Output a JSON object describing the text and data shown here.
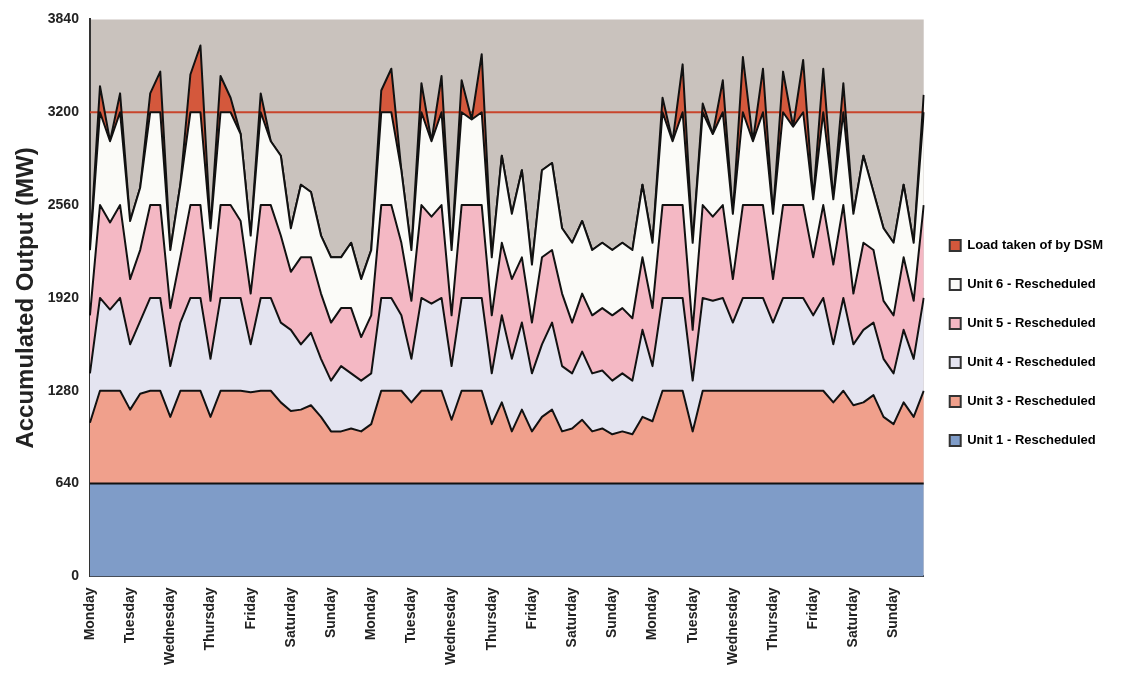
{
  "chart_data": {
    "type": "area",
    "stacked": true,
    "ylabel": "Accumulated Output (MW)",
    "ylim": [
      0,
      3840
    ],
    "yticks": [
      0,
      640,
      1280,
      1920,
      2560,
      3200,
      3840
    ],
    "grid": false,
    "legend": "right",
    "marker": "none",
    "categories": [
      "Monday",
      null,
      null,
      null,
      "Tuesday",
      null,
      null,
      null,
      "Wednesday",
      null,
      null,
      null,
      "Thursday",
      null,
      null,
      null,
      "Friday",
      null,
      null,
      null,
      "Saturday",
      null,
      null,
      null,
      "Sunday",
      null,
      null,
      null,
      "Monday",
      null,
      null,
      null,
      "Tuesday",
      null,
      null,
      null,
      "Wednesday",
      null,
      null,
      null,
      "Thursday",
      null,
      null,
      null,
      "Friday",
      null,
      null,
      null,
      "Saturday",
      null,
      null,
      null,
      "Sunday",
      null,
      null,
      null,
      "Monday",
      null,
      null,
      null,
      "Tuesday",
      null,
      null,
      null,
      "Wednesday",
      null,
      null,
      null,
      "Thursday",
      null,
      null,
      null,
      "Friday",
      null,
      null,
      null,
      "Saturday",
      null,
      null,
      null,
      "Sunday",
      null,
      null,
      null
    ],
    "ref_lines": [
      {
        "axis": "y",
        "value": 3200,
        "color": "#c8452c"
      }
    ],
    "series": [
      {
        "name": "Unit 1 - Rescheduled",
        "color": "#7f9cc8",
        "values": [
          640,
          640,
          640,
          640,
          640,
          640,
          640,
          640,
          640,
          640,
          640,
          640,
          640,
          640,
          640,
          640,
          640,
          640,
          640,
          640,
          640,
          640,
          640,
          640,
          640,
          640,
          640,
          640,
          640,
          640,
          640,
          640,
          640,
          640,
          640,
          640,
          640,
          640,
          640,
          640,
          640,
          640,
          640,
          640,
          640,
          640,
          640,
          640,
          640,
          640,
          640,
          640,
          640,
          640,
          640,
          640,
          640,
          640,
          640,
          640,
          640,
          640,
          640,
          640,
          640,
          640,
          640,
          640,
          640,
          640,
          640,
          640,
          640,
          640,
          640,
          640,
          640,
          640,
          640,
          640,
          640,
          640,
          640,
          640
        ]
      },
      {
        "name": "Unit 3 - Rescheduled",
        "color": "#f0a08c",
        "values": [
          420,
          640,
          640,
          640,
          510,
          620,
          640,
          640,
          460,
          640,
          640,
          640,
          460,
          640,
          640,
          640,
          630,
          640,
          640,
          560,
          500,
          510,
          540,
          460,
          360,
          360,
          380,
          360,
          410,
          640,
          640,
          640,
          560,
          640,
          640,
          640,
          440,
          640,
          640,
          640,
          410,
          560,
          360,
          510,
          360,
          460,
          510,
          360,
          380,
          440,
          360,
          380,
          340,
          360,
          340,
          460,
          430,
          640,
          640,
          640,
          360,
          640,
          640,
          640,
          640,
          640,
          640,
          640,
          640,
          640,
          640,
          640,
          640,
          640,
          560,
          640,
          540,
          560,
          610,
          460,
          410,
          560,
          460,
          640
        ]
      },
      {
        "name": "Unit 4 - Rescheduled",
        "color": "#e4e4f0",
        "values": [
          340,
          640,
          560,
          640,
          450,
          500,
          640,
          640,
          350,
          470,
          640,
          640,
          400,
          640,
          640,
          640,
          330,
          640,
          640,
          550,
          560,
          450,
          500,
          400,
          350,
          450,
          380,
          350,
          350,
          640,
          640,
          520,
          300,
          640,
          600,
          640,
          370,
          640,
          640,
          640,
          350,
          600,
          500,
          600,
          400,
          500,
          600,
          450,
          380,
          470,
          400,
          400,
          370,
          400,
          370,
          600,
          380,
          640,
          640,
          640,
          350,
          640,
          620,
          640,
          470,
          640,
          640,
          640,
          470,
          640,
          640,
          640,
          520,
          640,
          400,
          640,
          420,
          500,
          500,
          400,
          350,
          500,
          400,
          640
        ]
      },
      {
        "name": "Unit 5 - Rescheduled",
        "color": "#f4b8c4",
        "values": [
          400,
          640,
          600,
          640,
          450,
          490,
          640,
          640,
          400,
          450,
          640,
          640,
          400,
          640,
          640,
          530,
          350,
          640,
          640,
          600,
          400,
          600,
          520,
          450,
          400,
          400,
          450,
          300,
          400,
          640,
          640,
          500,
          400,
          640,
          600,
          640,
          350,
          640,
          640,
          640,
          400,
          500,
          550,
          450,
          350,
          600,
          500,
          500,
          350,
          400,
          400,
          430,
          450,
          450,
          430,
          500,
          400,
          640,
          640,
          640,
          350,
          640,
          580,
          640,
          300,
          640,
          640,
          640,
          300,
          640,
          640,
          640,
          400,
          640,
          550,
          640,
          350,
          600,
          500,
          400,
          400,
          500,
          400,
          640
        ]
      },
      {
        "name": "Unit 6 - Rescheduled",
        "color": "#fbfbf8",
        "values": [
          450,
          640,
          560,
          640,
          400,
          430,
          640,
          640,
          400,
          500,
          640,
          640,
          500,
          640,
          640,
          600,
          400,
          640,
          440,
          550,
          300,
          500,
          450,
          400,
          450,
          350,
          450,
          400,
          450,
          640,
          640,
          500,
          350,
          640,
          520,
          640,
          450,
          640,
          590,
          640,
          400,
          600,
          450,
          600,
          400,
          600,
          600,
          450,
          550,
          500,
          450,
          450,
          450,
          450,
          470,
          500,
          450,
          640,
          440,
          640,
          600,
          640,
          570,
          640,
          450,
          640,
          440,
          640,
          450,
          640,
          540,
          640,
          400,
          640,
          450,
          640,
          550,
          600,
          400,
          500,
          500,
          500,
          400,
          640
        ]
      },
      {
        "name": "Load taken of by DSM",
        "color": "#d4583c",
        "values": [
          0,
          180,
          0,
          130,
          0,
          0,
          130,
          280,
          0,
          0,
          260,
          460,
          0,
          250,
          100,
          0,
          0,
          130,
          0,
          0,
          0,
          0,
          0,
          0,
          0,
          0,
          0,
          0,
          0,
          150,
          300,
          0,
          0,
          200,
          0,
          250,
          0,
          220,
          0,
          400,
          0,
          0,
          0,
          0,
          0,
          0,
          0,
          0,
          0,
          0,
          0,
          0,
          0,
          0,
          0,
          0,
          0,
          100,
          0,
          330,
          0,
          60,
          0,
          220,
          0,
          380,
          0,
          300,
          0,
          280,
          0,
          360,
          0,
          300,
          0,
          200,
          0,
          0,
          0,
          0,
          0,
          0,
          0,
          120
        ]
      }
    ]
  }
}
